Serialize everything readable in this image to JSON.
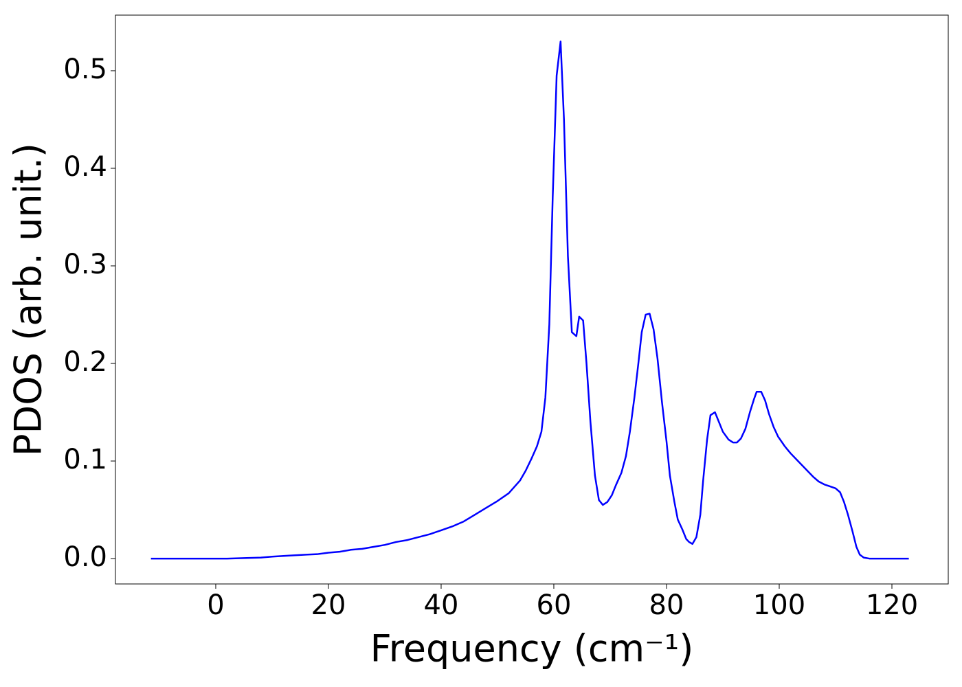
{
  "chart_data": {
    "type": "line",
    "xlabel": "Frequency (cm⁻¹)",
    "ylabel": "PDOS (arb. unit.)",
    "xlim": [
      -17.8,
      130
    ],
    "ylim": [
      -0.026,
      0.557
    ],
    "xticks": [
      0,
      20,
      40,
      60,
      80,
      100,
      120
    ],
    "yticks": [
      {
        "value": 0,
        "label": "0.0"
      },
      0.1,
      0.2,
      0.3,
      0.4,
      0.5
    ],
    "series": [
      {
        "color": "#0000ff",
        "x": [
          -11.5,
          2,
          5,
          8,
          10,
          13,
          16,
          18,
          20,
          22,
          24,
          26,
          28,
          30,
          32,
          34,
          36,
          38,
          40,
          42,
          44,
          46,
          48,
          50,
          52,
          54,
          55,
          56,
          57,
          57.8,
          58.5,
          59.2,
          59.8,
          60.5,
          61.2,
          61.8,
          62.5,
          63.2,
          64,
          64.5,
          65.2,
          65.8,
          66.5,
          67.3,
          68,
          68.7,
          69.5,
          70.3,
          71,
          72,
          72.8,
          73.5,
          74.3,
          75,
          75.6,
          76.3,
          77,
          77.7,
          78.4,
          79.2,
          80,
          80.6,
          81.4,
          82,
          82.8,
          83.5,
          84,
          84.6,
          85.3,
          86,
          86.5,
          87.2,
          87.8,
          88.6,
          89.3,
          90,
          91,
          91.8,
          92.5,
          93.2,
          94,
          94.8,
          95.5,
          96,
          96.8,
          97.5,
          98.2,
          99,
          99.8,
          101,
          102,
          103,
          104,
          105,
          106,
          107,
          108,
          109,
          110,
          110.8,
          111.5,
          112.2,
          113,
          113.7,
          114.3,
          115,
          116,
          123
        ],
        "values": [
          0,
          0,
          0.0005,
          0.001,
          0.002,
          0.003,
          0.004,
          0.0045,
          0.006,
          0.007,
          0.009,
          0.01,
          0.012,
          0.014,
          0.017,
          0.019,
          0.022,
          0.025,
          0.029,
          0.033,
          0.038,
          0.045,
          0.052,
          0.059,
          0.067,
          0.08,
          0.09,
          0.102,
          0.115,
          0.13,
          0.165,
          0.24,
          0.37,
          0.495,
          0.53,
          0.45,
          0.31,
          0.232,
          0.228,
          0.248,
          0.244,
          0.2,
          0.14,
          0.085,
          0.06,
          0.055,
          0.058,
          0.065,
          0.075,
          0.088,
          0.105,
          0.13,
          0.165,
          0.2,
          0.232,
          0.25,
          0.251,
          0.235,
          0.205,
          0.16,
          0.12,
          0.085,
          0.058,
          0.04,
          0.03,
          0.02,
          0.017,
          0.015,
          0.022,
          0.045,
          0.08,
          0.122,
          0.147,
          0.15,
          0.14,
          0.13,
          0.122,
          0.119,
          0.119,
          0.123,
          0.133,
          0.15,
          0.163,
          0.171,
          0.171,
          0.162,
          0.148,
          0.135,
          0.125,
          0.115,
          0.108,
          0.102,
          0.096,
          0.09,
          0.084,
          0.079,
          0.076,
          0.074,
          0.072,
          0.068,
          0.058,
          0.045,
          0.028,
          0.012,
          0.004,
          0.001,
          0,
          0
        ]
      }
    ]
  }
}
